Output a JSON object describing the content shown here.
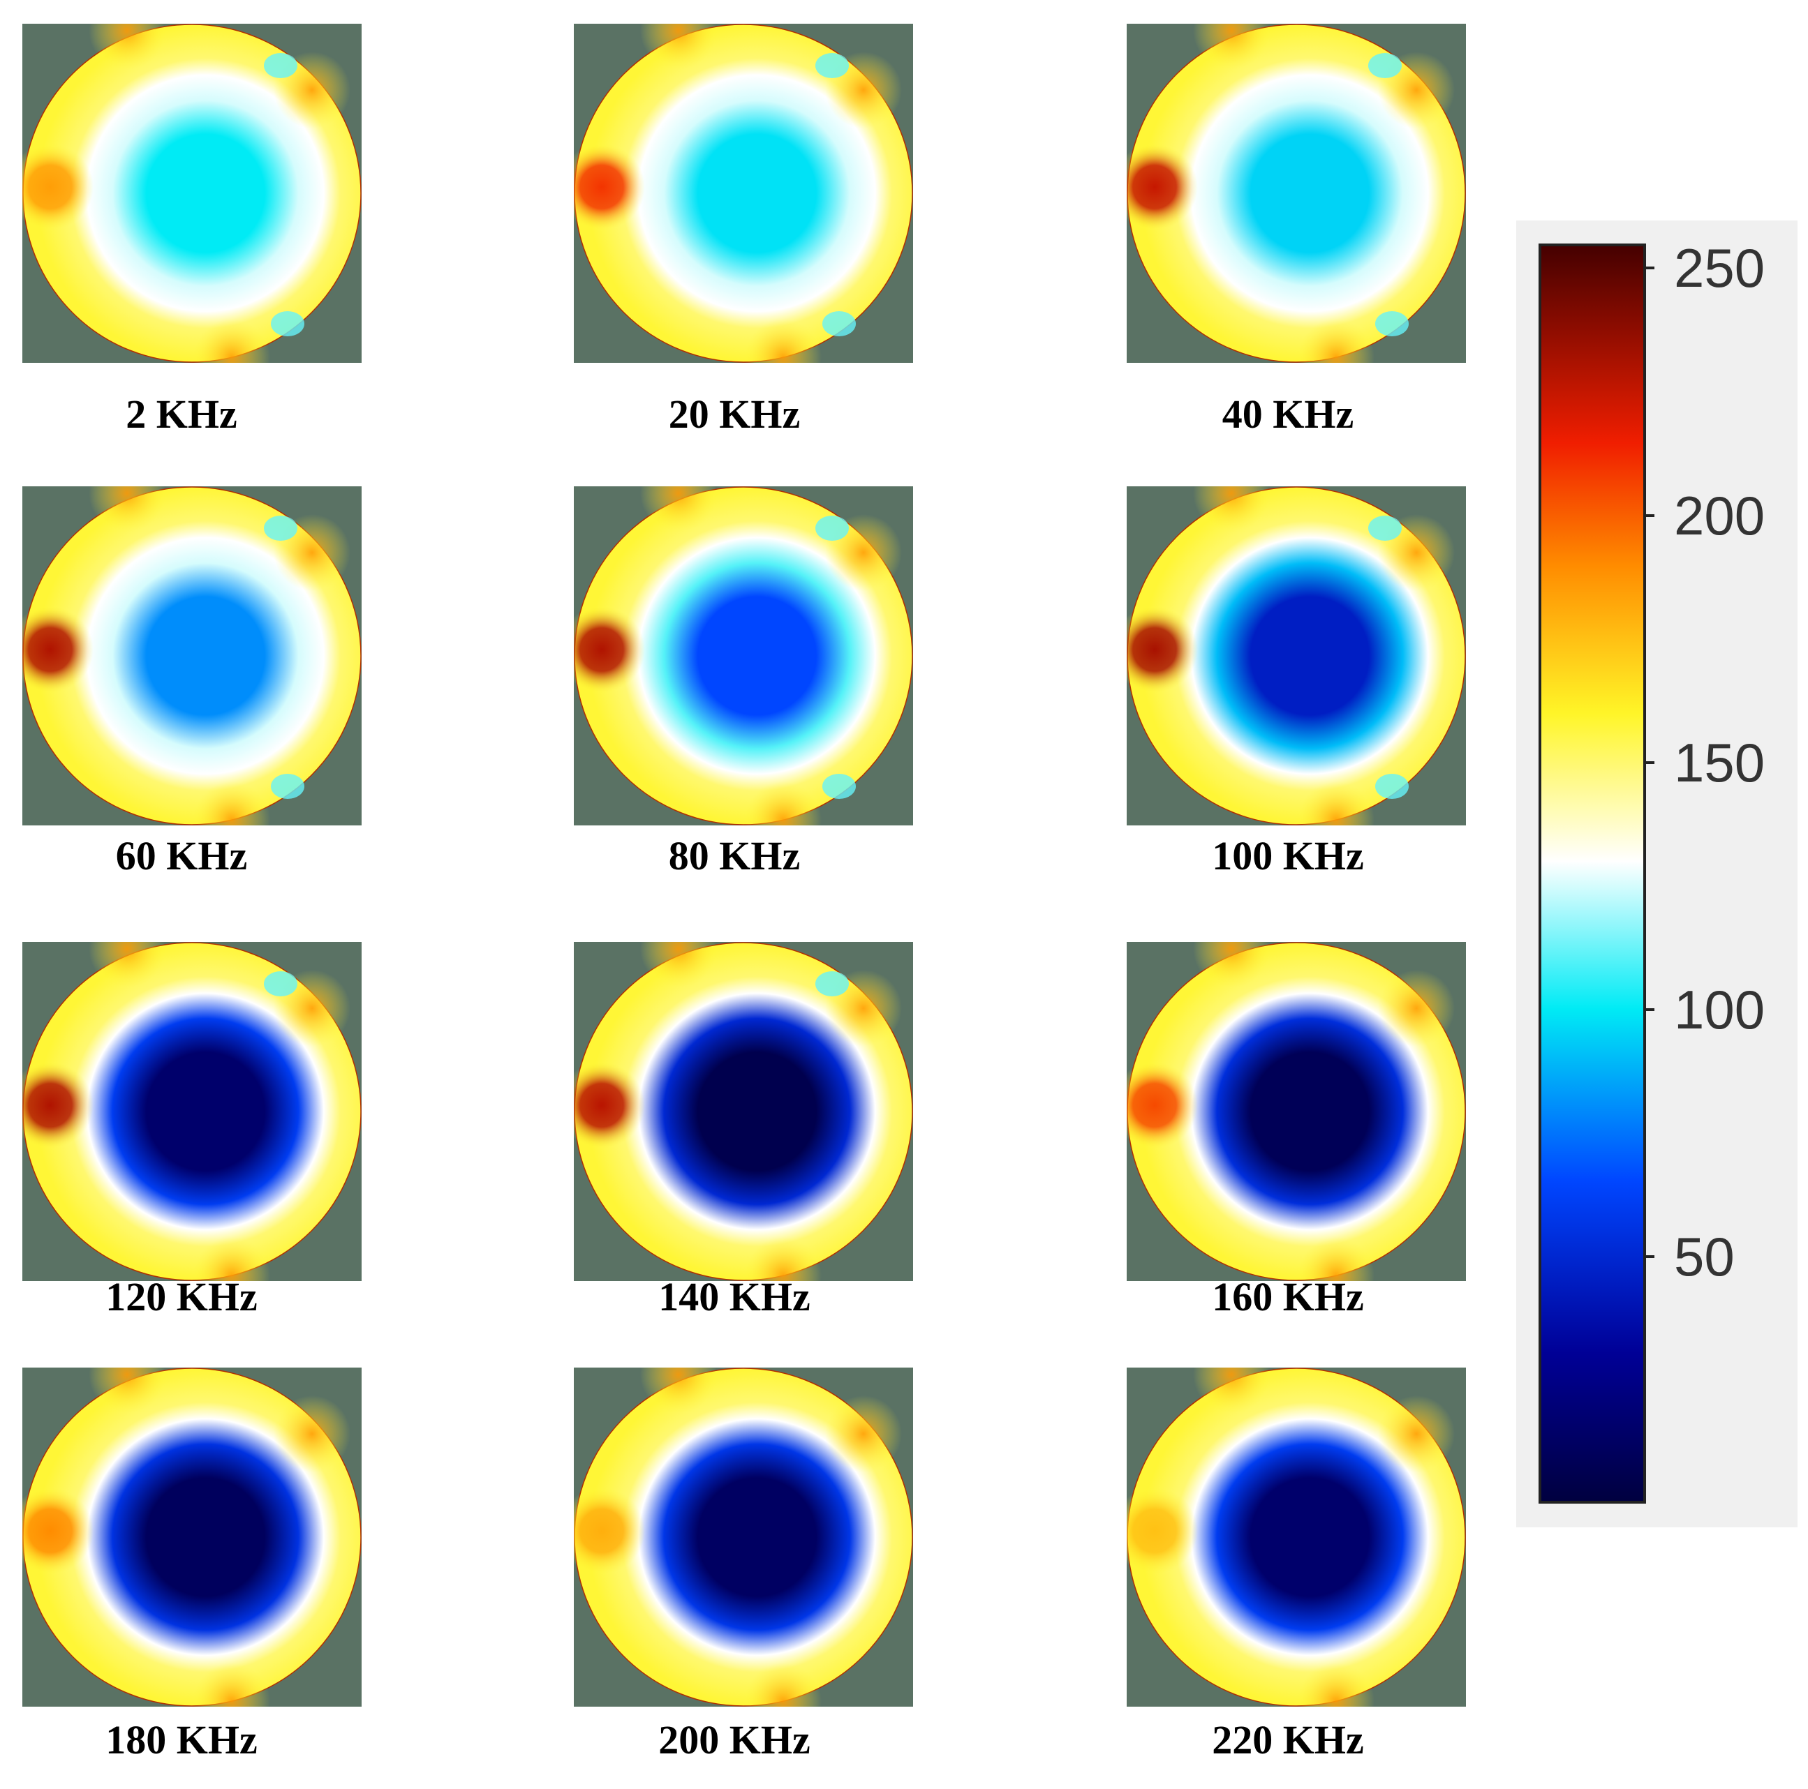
{
  "chart_data": {
    "type": "heatmap",
    "panels": [
      {
        "label": "2 KHz",
        "frequency_khz": 2,
        "center_value": 100,
        "left_spot_value": 185
      },
      {
        "label": "20 KHz",
        "frequency_khz": 20,
        "center_value": 98,
        "left_spot_value": 210
      },
      {
        "label": "40 KHz",
        "frequency_khz": 40,
        "center_value": 95,
        "left_spot_value": 225
      },
      {
        "label": "60 KHz",
        "frequency_khz": 60,
        "center_value": 80,
        "left_spot_value": 230
      },
      {
        "label": "80 KHz",
        "frequency_khz": 80,
        "center_value": 65,
        "left_spot_value": 230
      },
      {
        "label": "100 KHz",
        "frequency_khz": 100,
        "center_value": 45,
        "left_spot_value": 232
      },
      {
        "label": "120 KHz",
        "frequency_khz": 120,
        "center_value": 15,
        "left_spot_value": 230
      },
      {
        "label": "140 KHz",
        "frequency_khz": 140,
        "center_value": 5,
        "left_spot_value": 228
      },
      {
        "label": "160 KHz",
        "frequency_khz": 160,
        "center_value": 8,
        "left_spot_value": 205
      },
      {
        "label": "180 KHz",
        "frequency_khz": 180,
        "center_value": 10,
        "left_spot_value": 190
      },
      {
        "label": "200 KHz",
        "frequency_khz": 200,
        "center_value": 12,
        "left_spot_value": 180
      },
      {
        "label": "220 KHz",
        "frequency_khz": 220,
        "center_value": 15,
        "left_spot_value": 175
      }
    ],
    "colorbar": {
      "range": [
        0,
        255
      ],
      "ticks": [
        50,
        100,
        150,
        200,
        250
      ],
      "colormap": "jet-with-white-center",
      "placement": "right"
    },
    "colors": {
      "background": "#5a7264",
      "ring": "#fff060",
      "colorbar_box": "#f0f0f0"
    }
  }
}
